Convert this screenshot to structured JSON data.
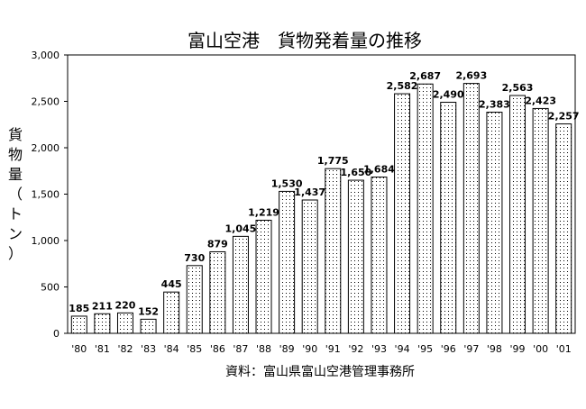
{
  "chart_data": {
    "type": "bar",
    "title": "富山空港　貨物発着量の推移",
    "xlabel": "",
    "ylabel": "貨物量（トン）",
    "categories": [
      "'80",
      "'81",
      "'82",
      "'83",
      "'84",
      "'85",
      "'86",
      "'87",
      "'88",
      "'89",
      "'90",
      "'91",
      "'92",
      "'93",
      "'94",
      "'95",
      "'96",
      "'97",
      "'98",
      "'99",
      "'00",
      "'01"
    ],
    "values": [
      185,
      211,
      220,
      152,
      445,
      730,
      879,
      1045,
      1219,
      1530,
      1437,
      1775,
      1650,
      1684,
      2582,
      2687,
      2490,
      2693,
      2383,
      2563,
      2423,
      2257
    ],
    "value_labels": [
      "185",
      "211",
      "220",
      "152",
      "445",
      "730",
      "879",
      "1,045",
      "1,219",
      "1,530",
      "1,437",
      "1,775",
      "1,650",
      "1,684",
      "2,582",
      "2,687",
      "2,490",
      "2,693",
      "2,383",
      "2,563",
      "2,423",
      "2,257"
    ],
    "ylim": [
      0,
      3000
    ],
    "y_ticks": [
      0,
      500,
      1000,
      1500,
      2000,
      2500,
      3000
    ],
    "y_tick_labels": [
      "0",
      "500",
      "1,000",
      "1,500",
      "2,000",
      "2,500",
      "3,000"
    ],
    "grid": false,
    "bar_fill": "dotted",
    "source": "資料：富山県富山空港管理事務所"
  }
}
